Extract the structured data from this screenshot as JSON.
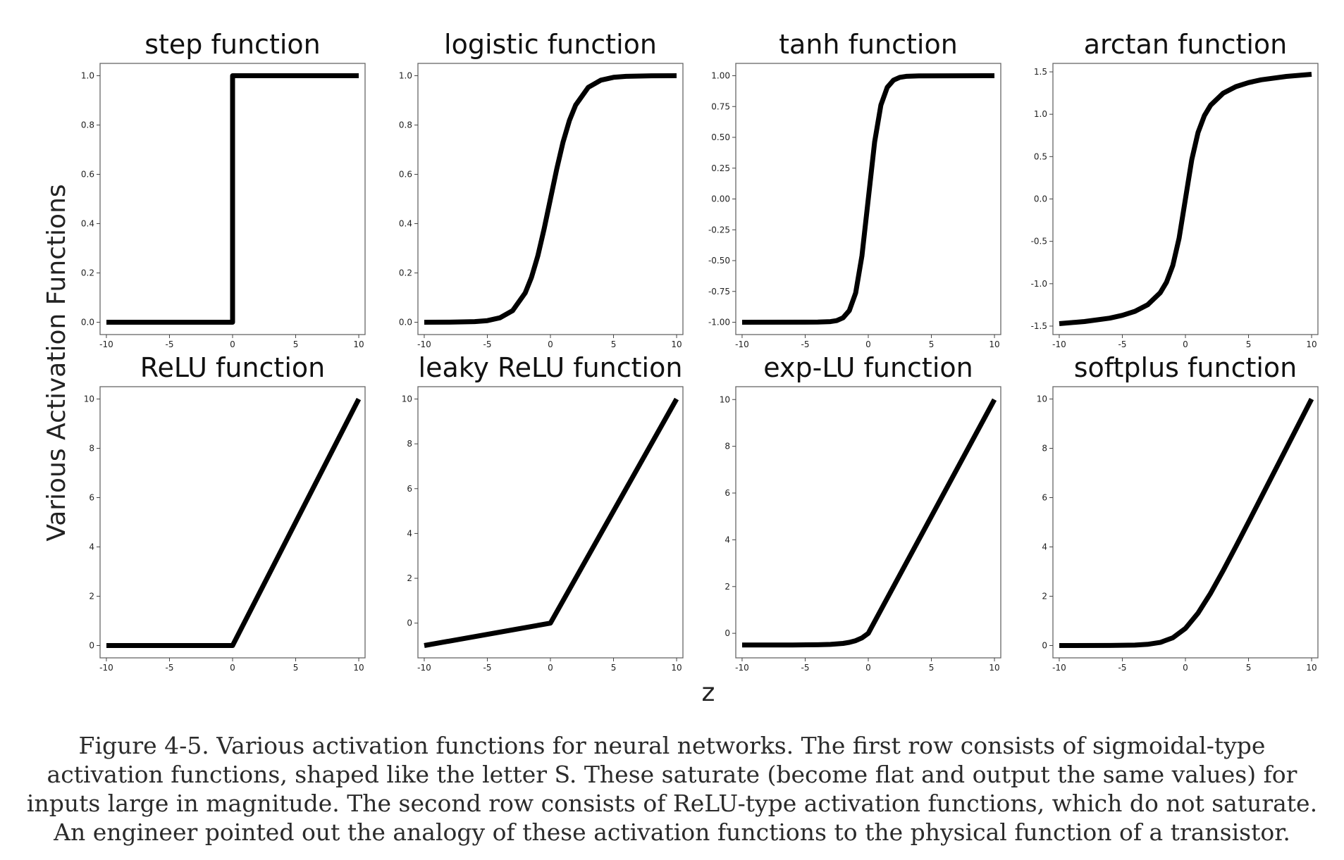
{
  "figure": {
    "ylabel": "Various Activation Functions",
    "xlabel": "z",
    "caption": "Figure 4-5. Various activation functions for neural networks. The first row consists of sigmoidal-type activation functions, shaped like the letter S. These saturate (become flat and output the same values) for inputs large in magnitude. The second row consists of ReLU-type activation functions, which do not saturate. An engineer pointed out the analogy of these activation functions to the physical function of a transistor."
  },
  "chart_data": [
    {
      "type": "line",
      "title": "step function",
      "xlim": [
        -10.5,
        10.5
      ],
      "ylim": [
        -0.05,
        1.05
      ],
      "xticks": [
        -10,
        -5,
        0,
        5,
        10
      ],
      "xticklabels": [
        "-10",
        "-5",
        "0",
        "5",
        "10"
      ],
      "yticks": [
        0,
        0.2,
        0.4,
        0.6,
        0.8,
        1.0
      ],
      "yticklabels": [
        "0.0",
        "0.2",
        "0.4",
        "0.6",
        "0.8",
        "1.0"
      ],
      "x": [
        -10,
        0,
        0,
        10
      ],
      "y": [
        0,
        0,
        1,
        1
      ]
    },
    {
      "type": "line",
      "title": "logistic function",
      "xlim": [
        -10.5,
        10.5
      ],
      "ylim": [
        -0.05,
        1.05
      ],
      "xticks": [
        -10,
        -5,
        0,
        5,
        10
      ],
      "xticklabels": [
        "-10",
        "-5",
        "0",
        "5",
        "10"
      ],
      "yticks": [
        0,
        0.2,
        0.4,
        0.6,
        0.8,
        1.0
      ],
      "yticklabels": [
        "0.0",
        "0.2",
        "0.4",
        "0.6",
        "0.8",
        "1.0"
      ],
      "x": [
        -10,
        -8,
        -6,
        -5,
        -4,
        -3,
        -2,
        -1.5,
        -1,
        -0.5,
        0,
        0.5,
        1,
        1.5,
        2,
        3,
        4,
        5,
        6,
        8,
        10
      ],
      "y": [
        0.0,
        0.0003,
        0.0025,
        0.0067,
        0.018,
        0.047,
        0.119,
        0.182,
        0.269,
        0.378,
        0.5,
        0.622,
        0.731,
        0.818,
        0.881,
        0.953,
        0.982,
        0.9933,
        0.9975,
        0.9997,
        1.0
      ]
    },
    {
      "type": "line",
      "title": "tanh function",
      "xlim": [
        -10.5,
        10.5
      ],
      "ylim": [
        -1.1,
        1.1
      ],
      "xticks": [
        -10,
        -5,
        0,
        5,
        10
      ],
      "xticklabels": [
        "-10",
        "-5",
        "0",
        "5",
        "10"
      ],
      "yticks": [
        -1,
        -0.75,
        -0.5,
        -0.25,
        0,
        0.25,
        0.5,
        0.75,
        1
      ],
      "yticklabels": [
        "-1.00",
        "-0.75",
        "-0.50",
        "-0.25",
        "0.00",
        "0.25",
        "0.50",
        "0.75",
        "1.00"
      ],
      "x": [
        -10,
        -4,
        -3,
        -2.5,
        -2,
        -1.5,
        -1,
        -0.5,
        0,
        0.5,
        1,
        1.5,
        2,
        2.5,
        3,
        4,
        10
      ],
      "y": [
        -1.0,
        -0.999,
        -0.995,
        -0.987,
        -0.964,
        -0.905,
        -0.762,
        -0.462,
        0.0,
        0.462,
        0.762,
        0.905,
        0.964,
        0.987,
        0.995,
        0.999,
        1.0
      ]
    },
    {
      "type": "line",
      "title": "arctan function",
      "xlim": [
        -10.5,
        10.5
      ],
      "ylim": [
        -1.6,
        1.6
      ],
      "xticks": [
        -10,
        -5,
        0,
        5,
        10
      ],
      "xticklabels": [
        "-10",
        "-5",
        "0",
        "5",
        "10"
      ],
      "yticks": [
        -1.5,
        -1.0,
        -0.5,
        0,
        0.5,
        1.0,
        1.5
      ],
      "yticklabels": [
        "-1.5",
        "-1.0",
        "-0.5",
        "0.0",
        "0.5",
        "1.0",
        "1.5"
      ],
      "x": [
        -10,
        -8,
        -6,
        -5,
        -4,
        -3,
        -2,
        -1.5,
        -1,
        -0.5,
        0,
        0.5,
        1,
        1.5,
        2,
        3,
        4,
        5,
        6,
        8,
        10
      ],
      "y": [
        -1.471,
        -1.446,
        -1.406,
        -1.373,
        -1.326,
        -1.249,
        -1.107,
        -0.983,
        -0.785,
        -0.464,
        0.0,
        0.464,
        0.785,
        0.983,
        1.107,
        1.249,
        1.326,
        1.373,
        1.406,
        1.446,
        1.471
      ]
    },
    {
      "type": "line",
      "title": "ReLU function",
      "xlim": [
        -10.5,
        10.5
      ],
      "ylim": [
        -0.5,
        10.5
      ],
      "xticks": [
        -10,
        -5,
        0,
        5,
        10
      ],
      "xticklabels": [
        "-10",
        "-5",
        "0",
        "5",
        "10"
      ],
      "yticks": [
        0,
        2,
        4,
        6,
        8,
        10
      ],
      "yticklabels": [
        "0",
        "2",
        "4",
        "6",
        "8",
        "10"
      ],
      "x": [
        -10,
        0,
        10
      ],
      "y": [
        0,
        0,
        10
      ]
    },
    {
      "type": "line",
      "title": "leaky ReLU function",
      "xlim": [
        -10.5,
        10.5
      ],
      "ylim": [
        -1.55,
        10.55
      ],
      "xticks": [
        -10,
        -5,
        0,
        5,
        10
      ],
      "xticklabels": [
        "-10",
        "-5",
        "0",
        "5",
        "10"
      ],
      "yticks": [
        0,
        2,
        4,
        6,
        8,
        10
      ],
      "yticklabels": [
        "0",
        "2",
        "4",
        "6",
        "8",
        "10"
      ],
      "x": [
        -10,
        0,
        10
      ],
      "y": [
        -1,
        0,
        10
      ]
    },
    {
      "type": "line",
      "title": "exp-LU function",
      "xlim": [
        -10.5,
        10.5
      ],
      "ylim": [
        -1.05,
        10.55
      ],
      "xticks": [
        -10,
        -5,
        0,
        5,
        10
      ],
      "xticklabels": [
        "-10",
        "-5",
        "0",
        "5",
        "10"
      ],
      "yticks": [
        0,
        2,
        4,
        6,
        8,
        10
      ],
      "yticklabels": [
        "0",
        "2",
        "4",
        "6",
        "8",
        "10"
      ],
      "x": [
        -10,
        -6,
        -4,
        -3,
        -2,
        -1.5,
        -1,
        -0.5,
        0,
        10
      ],
      "y": [
        -0.5,
        -0.499,
        -0.491,
        -0.475,
        -0.432,
        -0.388,
        -0.316,
        -0.197,
        0,
        10
      ]
    },
    {
      "type": "line",
      "title": "softplus function",
      "xlim": [
        -10.5,
        10.5
      ],
      "ylim": [
        -0.5,
        10.5
      ],
      "xticks": [
        -10,
        -5,
        0,
        5,
        10
      ],
      "xticklabels": [
        "-10",
        "-5",
        "0",
        "5",
        "10"
      ],
      "yticks": [
        0,
        2,
        4,
        6,
        8,
        10
      ],
      "yticklabels": [
        "0",
        "2",
        "4",
        "6",
        "8",
        "10"
      ],
      "x": [
        -10,
        -6,
        -4,
        -3,
        -2,
        -1,
        0,
        1,
        2,
        3,
        4,
        5,
        6,
        8,
        10
      ],
      "y": [
        0.0,
        0.0025,
        0.018,
        0.049,
        0.127,
        0.313,
        0.693,
        1.313,
        2.127,
        3.049,
        4.018,
        5.007,
        6.002,
        8.0,
        10.0
      ]
    }
  ]
}
